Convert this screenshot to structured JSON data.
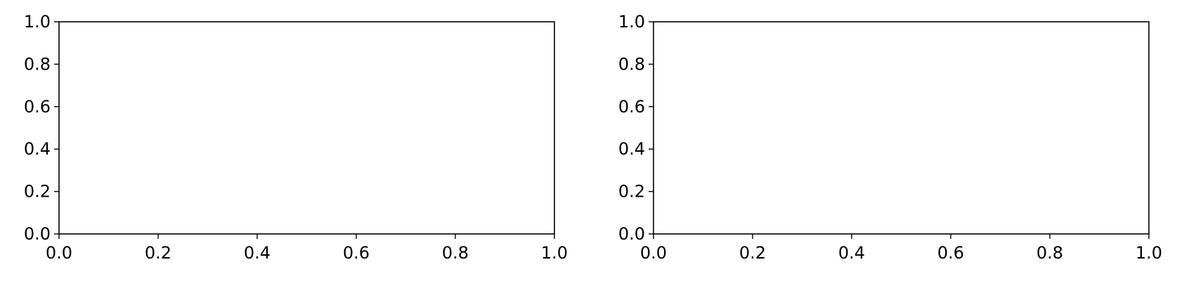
{
  "chart_data": [
    {
      "type": "line",
      "title": "",
      "xlabel": "",
      "ylabel": "",
      "xlim": [
        0.0,
        1.0
      ],
      "ylim": [
        0.0,
        1.0
      ],
      "x_ticks": [
        "0.0",
        "0.2",
        "0.4",
        "0.6",
        "0.8",
        "1.0"
      ],
      "y_ticks": [
        "0.0",
        "0.2",
        "0.4",
        "0.6",
        "0.8",
        "1.0"
      ],
      "grid": false,
      "series": []
    },
    {
      "type": "line",
      "title": "",
      "xlabel": "",
      "ylabel": "",
      "xlim": [
        0.0,
        1.0
      ],
      "ylim": [
        0.0,
        1.0
      ],
      "x_ticks": [
        "0.0",
        "0.2",
        "0.4",
        "0.6",
        "0.8",
        "1.0"
      ],
      "y_ticks": [
        "0.0",
        "0.2",
        "0.4",
        "0.6",
        "0.8",
        "1.0"
      ],
      "grid": false,
      "series": []
    }
  ]
}
